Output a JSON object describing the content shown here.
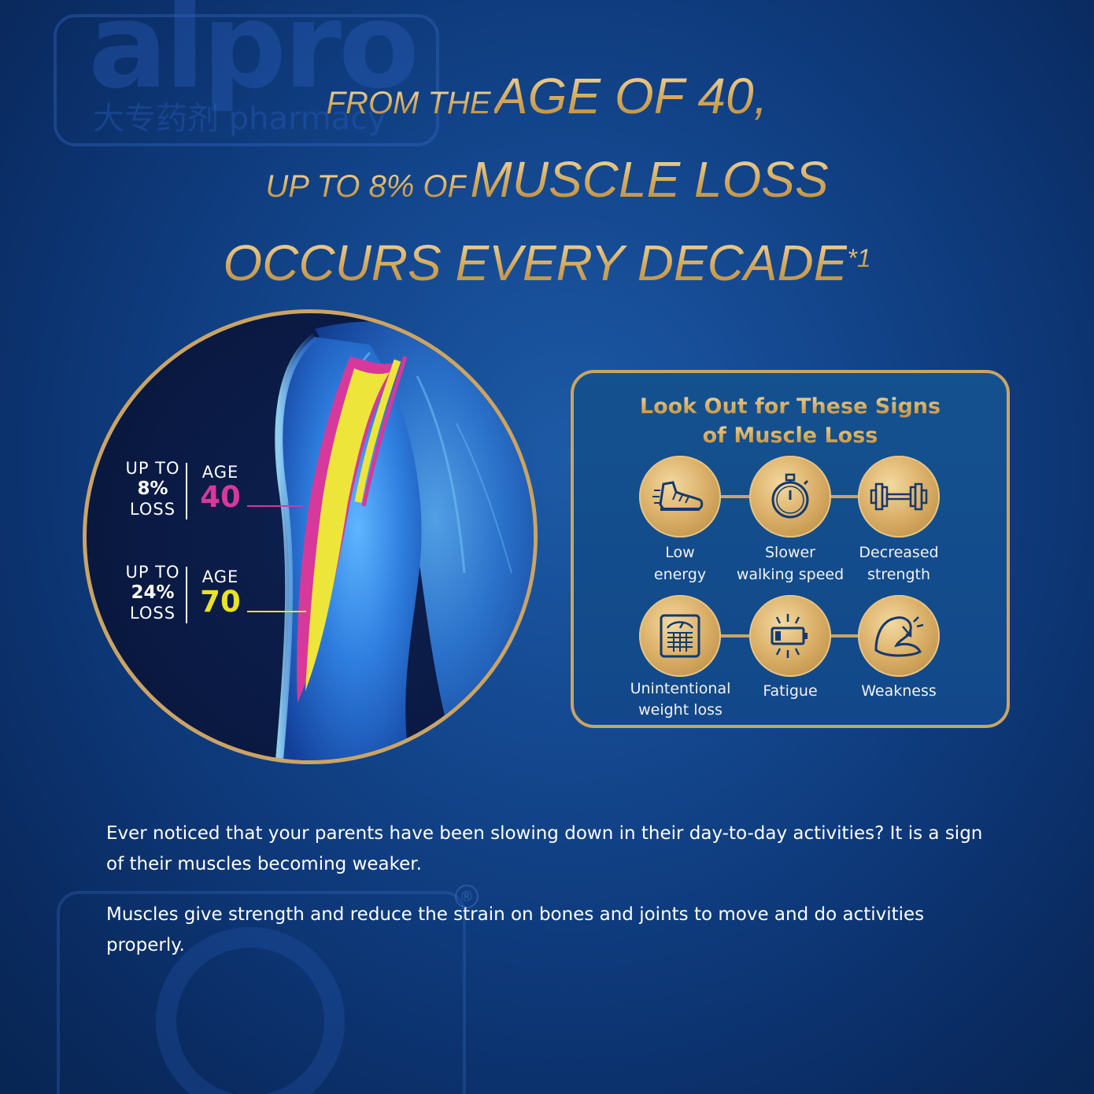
{
  "watermark": {
    "brand": "alpro",
    "sub": "大专药剂 pharmacy",
    "registered_mark": "®"
  },
  "headline": {
    "line1_small": "FROM THE",
    "line1_big": "AGE OF 40,",
    "line2_small": "UP TO 8% OF",
    "line2_big": "MUSCLE LOSS",
    "line3_big": "OCCURS EVERY DECADE",
    "line3_sup": "*1"
  },
  "arm": {
    "stat40": {
      "up_to": "UP TO",
      "pct": "8%",
      "loss": "LOSS",
      "age_label": "AGE",
      "age": "40",
      "color": "#d6399b"
    },
    "stat70": {
      "up_to": "UP TO",
      "pct": "24%",
      "loss": "LOSS",
      "age_label": "AGE",
      "age": "70",
      "color": "#e9e226"
    }
  },
  "signs": {
    "title_line1": "Look Out for These Signs",
    "title_line2": "of Muscle Loss",
    "items": [
      {
        "icon": "shoe-icon",
        "line1": "Low",
        "line2": "energy"
      },
      {
        "icon": "stopwatch-icon",
        "line1": "Slower",
        "line2": "walking speed"
      },
      {
        "icon": "dumbbell-icon",
        "line1": "Decreased",
        "line2": "strength"
      },
      {
        "icon": "weighing-scale-icon",
        "line1": "Unintentional",
        "line2": "weight loss"
      },
      {
        "icon": "low-battery-icon",
        "line1": "Fatigue",
        "line2": ""
      },
      {
        "icon": "weak-arm-icon",
        "line1": "Weakness",
        "line2": ""
      }
    ]
  },
  "body": {
    "para1": "Ever noticed that your parents have been slowing down in their day-to-day activities? It is a sign of their muscles becoming weaker.",
    "para2": "Muscles give strength and reduce the strain on bones and joints to move and do activities properly."
  }
}
